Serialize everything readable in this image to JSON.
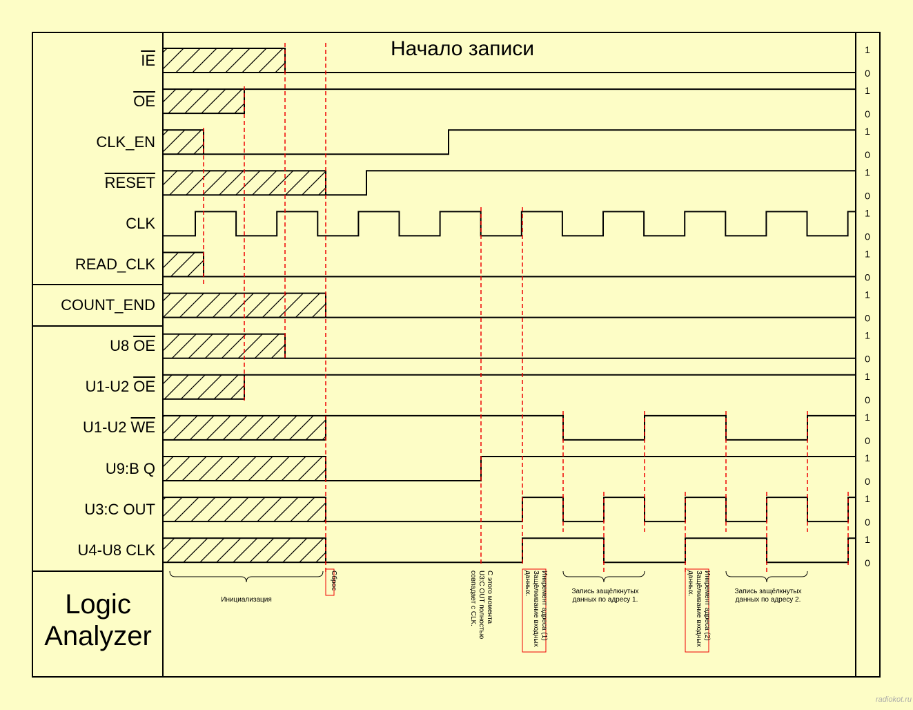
{
  "title": "Начало записи",
  "signals": [
    {
      "label_bar": "IE"
    },
    {
      "label_bar": "OE"
    },
    {
      "label": "CLK_EN"
    },
    {
      "label_bar": "RESET"
    },
    {
      "label": "CLK"
    },
    {
      "label": "READ_CLK"
    },
    {
      "label": "COUNT_END"
    },
    {
      "label": "U8",
      "label_bar": "OE"
    },
    {
      "label": "U1-U2",
      "label_bar": "OE"
    },
    {
      "label": "U1-U2",
      "label_bar": "WE"
    },
    {
      "label": "U9:B Q"
    },
    {
      "label": "U3:C OUT"
    },
    {
      "label": "U4-U8 CLK"
    }
  ],
  "levels": {
    "high": "1",
    "low": "0"
  },
  "annotations": [
    {
      "lines": [
        "Инициализация"
      ]
    },
    {
      "lines": [
        "Сброс"
      ]
    },
    {
      "lines": [
        "С этого момента",
        "U3:C OUT полностью",
        "совпадает с CLK."
      ]
    },
    {
      "lines": [
        "Инкремент адреса (1)",
        "Защёлкивание входных",
        "данных."
      ]
    },
    {
      "lines": [
        "Запись защёлкнутых",
        "данных по адресу 1."
      ]
    },
    {
      "lines": [
        "Инкремент адреса (2)",
        "Защёлкивание входных",
        "данных."
      ]
    },
    {
      "lines": [
        "Запись защёлкнутых",
        "данных по адресу 2."
      ]
    }
  ],
  "footer": {
    "line1": "Logic",
    "line2": "Analyzer"
  },
  "watermark": "radiokot.ru"
}
